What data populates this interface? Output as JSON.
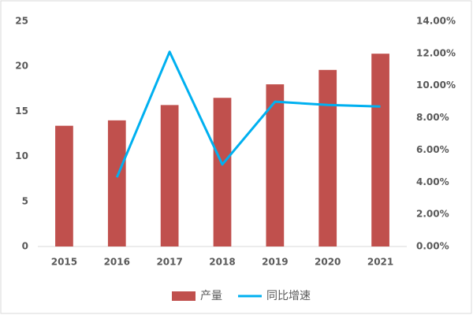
{
  "chart_data": {
    "type": "bar",
    "categories": [
      "2015",
      "2016",
      "2017",
      "2018",
      "2019",
      "2020",
      "2021"
    ],
    "series": [
      {
        "name": "产量",
        "type": "bar",
        "color": "#c0504d",
        "values": [
          13.4,
          14.0,
          15.7,
          16.5,
          18.0,
          19.6,
          21.4
        ]
      },
      {
        "name": "同比增速",
        "type": "line",
        "axis": "y2",
        "color": "#00b0f0",
        "values": [
          null,
          4.3,
          12.1,
          5.1,
          9.0,
          8.8,
          8.7
        ]
      }
    ],
    "ylim": [
      0,
      25
    ],
    "yticks": [
      0,
      5,
      10,
      15,
      20,
      25
    ],
    "y2lim": [
      0,
      14
    ],
    "y2ticks": [
      {
        "value": 0,
        "label": "0.00%"
      },
      {
        "value": 2,
        "label": "2.00%"
      },
      {
        "value": 4,
        "label": "4.00%"
      },
      {
        "value": 6,
        "label": "6.00%"
      },
      {
        "value": 8,
        "label": "8.00%"
      },
      {
        "value": 10,
        "label": "10.00%"
      },
      {
        "value": 12,
        "label": "12.00%"
      },
      {
        "value": 14,
        "label": "14.00%"
      }
    ],
    "grid": false,
    "legend": "bottom"
  }
}
